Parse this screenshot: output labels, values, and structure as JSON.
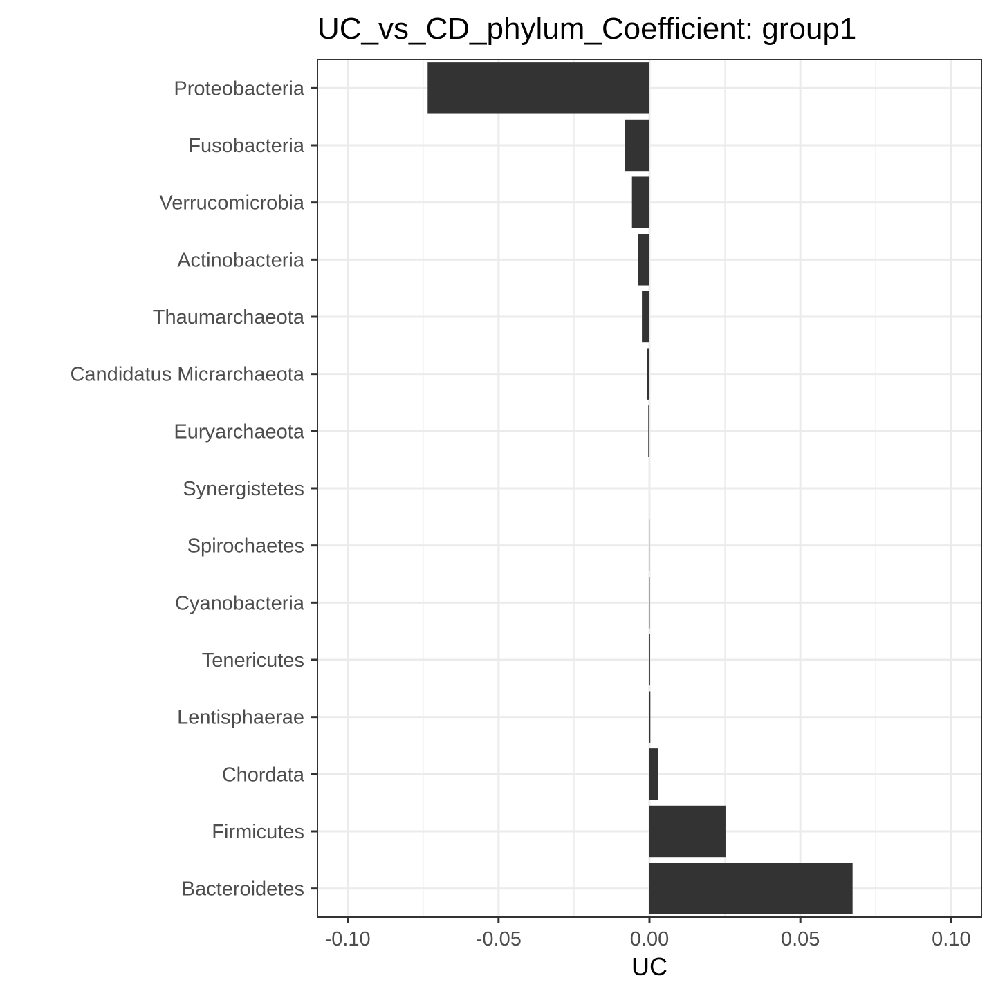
{
  "chart_data": {
    "type": "bar",
    "orientation": "horizontal",
    "title": "UC_vs_CD_phylum_Coefficient: group1",
    "xlabel": "UC",
    "ylabel": "",
    "xlim": [
      -0.11,
      0.11
    ],
    "x_ticks": [
      -0.1,
      -0.05,
      0.0,
      0.05,
      0.1
    ],
    "x_tick_labels": [
      "-0.10",
      "-0.05",
      "0.00",
      "0.05",
      "0.10"
    ],
    "grid": true,
    "legend": "none",
    "bar_color": "#333333",
    "categories": [
      "Proteobacteria",
      "Fusobacteria",
      "Verrucomicrobia",
      "Actinobacteria",
      "Thaumarchaeota",
      "Candidatus Micrarchaeota",
      "Euryarchaeota",
      "Synergistetes",
      "Spirochaetes",
      "Cyanobacteria",
      "Tenericutes",
      "Lentisphaerae",
      "Chordata",
      "Firmicutes",
      "Bacteroidetes"
    ],
    "values": [
      -0.0735,
      -0.0082,
      -0.0058,
      -0.0038,
      -0.0025,
      -0.0007,
      -0.0004,
      -0.0002,
      -0.0001,
      -5e-05,
      0.0002,
      0.0003,
      0.0028,
      0.0252,
      0.0673
    ]
  }
}
